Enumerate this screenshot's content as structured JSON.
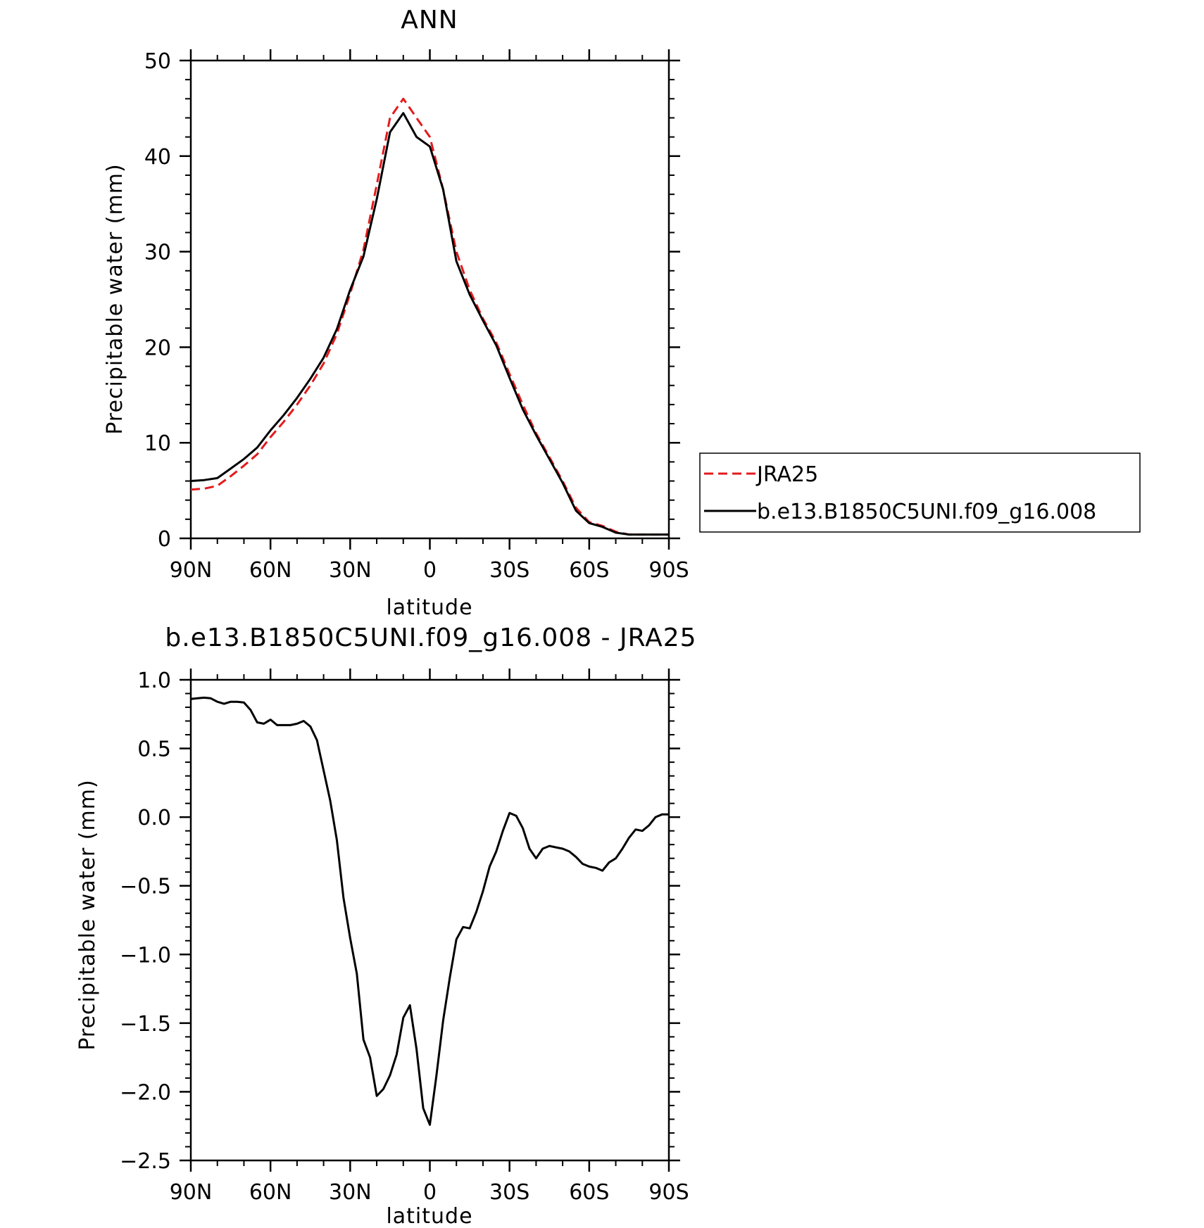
{
  "chart_data": [
    {
      "type": "line",
      "title": "ANN",
      "xlabel": "latitude",
      "ylabel": "Precipitable water (mm)",
      "x_tick_labels": [
        "90N",
        "60N",
        "30N",
        "0",
        "30S",
        "60S",
        "90S"
      ],
      "x_tick_values": [
        90,
        60,
        30,
        0,
        -30,
        -60,
        -90
      ],
      "xlim": [
        90,
        -90
      ],
      "ylim": [
        0,
        50
      ],
      "y_ticks": [
        0,
        10,
        20,
        30,
        40,
        50
      ],
      "grid": false,
      "legend": "right",
      "x": [
        90,
        85,
        80,
        75,
        70,
        65,
        60,
        55,
        50,
        45,
        40,
        35,
        30,
        25,
        20,
        15,
        10,
        5,
        0,
        -5,
        -10,
        -15,
        -20,
        -25,
        -30,
        -35,
        -40,
        -45,
        -50,
        -55,
        -60,
        -65,
        -70,
        -75,
        -80,
        -85,
        -90
      ],
      "series": [
        {
          "name": "JRA25",
          "color": "#e41a1c",
          "dash": "dashed",
          "values": [
            5.1,
            5.2,
            5.5,
            6.5,
            7.6,
            8.8,
            10.6,
            12.2,
            14.0,
            16.0,
            18.3,
            21.4,
            25.6,
            30.2,
            37.0,
            44.0,
            46.0,
            44.0,
            42.0,
            36.5,
            30.0,
            26.0,
            23.0,
            20.5,
            17.2,
            14.0,
            11.0,
            8.5,
            6.0,
            3.2,
            1.7,
            1.3,
            0.7,
            0.4,
            0.4,
            0.4,
            0.4
          ]
        },
        {
          "name": "b.e13.B1850C5UNI.f09_g16.008",
          "color": "#000000",
          "dash": "solid",
          "values": [
            6.0,
            6.1,
            6.3,
            7.3,
            8.3,
            9.5,
            11.3,
            12.9,
            14.7,
            16.7,
            18.9,
            21.9,
            26.0,
            29.5,
            35.5,
            42.5,
            44.5,
            42.0,
            41.0,
            36.5,
            29.0,
            25.5,
            22.8,
            20.2,
            16.8,
            13.5,
            10.8,
            8.3,
            5.8,
            2.9,
            1.6,
            1.2,
            0.6,
            0.4,
            0.4,
            0.4,
            0.4
          ]
        }
      ]
    },
    {
      "type": "line",
      "title": "b.e13.B1850C5UNI.f09_g16.008 - JRA25",
      "xlabel": "latitude",
      "ylabel": "Precipitable water (mm)",
      "x_tick_labels": [
        "90N",
        "60N",
        "30N",
        "0",
        "30S",
        "60S",
        "90S"
      ],
      "x_tick_values": [
        90,
        60,
        30,
        0,
        -30,
        -60,
        -90
      ],
      "xlim": [
        90,
        -90
      ],
      "ylim": [
        -2.5,
        1.0
      ],
      "y_ticks": [
        -2.5,
        -2.0,
        -1.5,
        -1.0,
        -0.5,
        0.0,
        0.5,
        1.0
      ],
      "y_tick_labels": [
        "−2.5",
        "−2.0",
        "−1.5",
        "−1.0",
        "−0.5",
        "0.0",
        "0.5",
        "1.0"
      ],
      "grid": false,
      "x": [
        90,
        87.5,
        85,
        82.5,
        80,
        77.5,
        75,
        72.5,
        70,
        67.5,
        65,
        62.5,
        60,
        57.5,
        55,
        52.5,
        50,
        47.5,
        45,
        42.5,
        40,
        37.5,
        35,
        32.5,
        30,
        27.5,
        25,
        22.5,
        20,
        17.5,
        15,
        12.5,
        10,
        7.5,
        5,
        2.5,
        0,
        -2.5,
        -5,
        -7.5,
        -10,
        -12.5,
        -15,
        -17.5,
        -20,
        -22.5,
        -25,
        -27.5,
        -30,
        -32.5,
        -35,
        -37.5,
        -40,
        -42.5,
        -45,
        -47.5,
        -50,
        -52.5,
        -55,
        -57.5,
        -60,
        -62.5,
        -65,
        -67.5,
        -70,
        -72.5,
        -75,
        -77.5,
        -80,
        -82.5,
        -85,
        -87.5,
        -90
      ],
      "series": [
        {
          "color": "#000000",
          "dash": "solid",
          "values": [
            0.86,
            0.865,
            0.87,
            0.865,
            0.84,
            0.825,
            0.84,
            0.84,
            0.835,
            0.78,
            0.69,
            0.68,
            0.71,
            0.67,
            0.67,
            0.67,
            0.68,
            0.7,
            0.66,
            0.56,
            0.34,
            0.12,
            -0.17,
            -0.59,
            -0.88,
            -1.14,
            -1.62,
            -1.75,
            -2.03,
            -1.98,
            -1.88,
            -1.73,
            -1.46,
            -1.37,
            -1.69,
            -2.12,
            -2.24,
            -1.88,
            -1.48,
            -1.17,
            -0.89,
            -0.8,
            -0.81,
            -0.69,
            -0.54,
            -0.36,
            -0.25,
            -0.1,
            0.03,
            0.01,
            -0.08,
            -0.23,
            -0.3,
            -0.23,
            -0.21,
            -0.22,
            -0.23,
            -0.25,
            -0.29,
            -0.34,
            -0.36,
            -0.37,
            -0.39,
            -0.33,
            -0.3,
            -0.23,
            -0.15,
            -0.09,
            -0.1,
            -0.06,
            0.0,
            0.02,
            0.02
          ]
        }
      ]
    }
  ]
}
